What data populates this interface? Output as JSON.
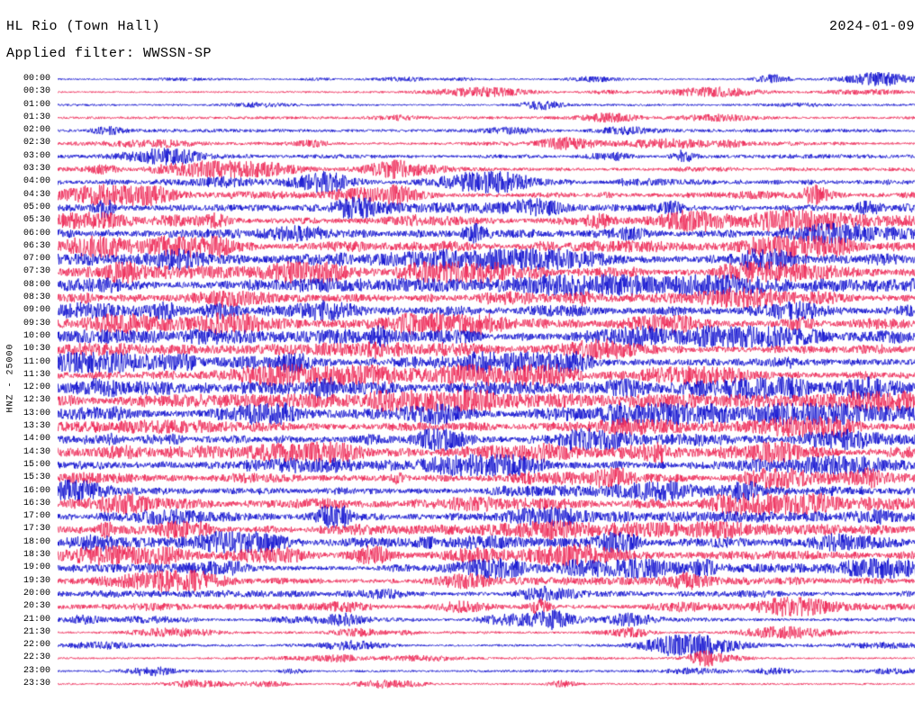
{
  "header": {
    "station_title": "HL Rio (Town Hall)",
    "date": "2024-01-09",
    "filter_label": "Applied filter: WWSSN-SP"
  },
  "axis": {
    "y_label": "HNZ - 25000"
  },
  "chart_data": {
    "type": "line",
    "title": "HL Rio (Town Hall)",
    "subtitle": "Applied filter: WWSSN-SP",
    "date": "2024-01-09",
    "channel": "HNZ",
    "scale": 25000,
    "minutes_per_row": 30,
    "rows_count": 48,
    "legend_position": "none",
    "grid": false,
    "trace_colors": {
      "blue": "#0000cd",
      "red": "#ed1a4c"
    },
    "rows": [
      {
        "label": "00:00",
        "color": "blue",
        "activity": 0.22
      },
      {
        "label": "00:30",
        "color": "red",
        "activity": 0.25
      },
      {
        "label": "01:00",
        "color": "blue",
        "activity": 0.28
      },
      {
        "label": "01:30",
        "color": "red",
        "activity": 0.33
      },
      {
        "label": "02:00",
        "color": "blue",
        "activity": 0.38
      },
      {
        "label": "02:30",
        "color": "red",
        "activity": 0.42
      },
      {
        "label": "03:00",
        "color": "blue",
        "activity": 0.45
      },
      {
        "label": "03:30",
        "color": "red",
        "activity": 0.55
      },
      {
        "label": "04:00",
        "color": "blue",
        "activity": 0.65
      },
      {
        "label": "04:30",
        "color": "red",
        "activity": 0.68
      },
      {
        "label": "05:00",
        "color": "blue",
        "activity": 0.78
      },
      {
        "label": "05:30",
        "color": "red",
        "activity": 0.82
      },
      {
        "label": "06:00",
        "color": "blue",
        "activity": 0.88
      },
      {
        "label": "06:30",
        "color": "red",
        "activity": 0.85
      },
      {
        "label": "07:00",
        "color": "blue",
        "activity": 0.9
      },
      {
        "label": "07:30",
        "color": "red",
        "activity": 0.9
      },
      {
        "label": "08:00",
        "color": "blue",
        "activity": 0.92
      },
      {
        "label": "08:30",
        "color": "red",
        "activity": 0.88
      },
      {
        "label": "09:00",
        "color": "blue",
        "activity": 0.9
      },
      {
        "label": "09:30",
        "color": "red",
        "activity": 0.9
      },
      {
        "label": "10:00",
        "color": "blue",
        "activity": 0.92
      },
      {
        "label": "10:30",
        "color": "red",
        "activity": 0.9
      },
      {
        "label": "11:00",
        "color": "blue",
        "activity": 0.95
      },
      {
        "label": "11:30",
        "color": "red",
        "activity": 0.9
      },
      {
        "label": "12:00",
        "color": "blue",
        "activity": 0.9
      },
      {
        "label": "12:30",
        "color": "red",
        "activity": 0.92
      },
      {
        "label": "13:00",
        "color": "blue",
        "activity": 0.95
      },
      {
        "label": "13:30",
        "color": "red",
        "activity": 0.9
      },
      {
        "label": "14:00",
        "color": "blue",
        "activity": 0.9
      },
      {
        "label": "14:30",
        "color": "red",
        "activity": 0.92
      },
      {
        "label": "15:00",
        "color": "blue",
        "activity": 0.9
      },
      {
        "label": "15:30",
        "color": "red",
        "activity": 0.88
      },
      {
        "label": "16:00",
        "color": "blue",
        "activity": 0.85
      },
      {
        "label": "16:30",
        "color": "red",
        "activity": 0.85
      },
      {
        "label": "17:00",
        "color": "blue",
        "activity": 0.82
      },
      {
        "label": "17:30",
        "color": "red",
        "activity": 0.8
      },
      {
        "label": "18:00",
        "color": "blue",
        "activity": 0.75
      },
      {
        "label": "18:30",
        "color": "red",
        "activity": 0.72
      },
      {
        "label": "19:00",
        "color": "blue",
        "activity": 0.7
      },
      {
        "label": "19:30",
        "color": "red",
        "activity": 0.65
      },
      {
        "label": "20:00",
        "color": "blue",
        "activity": 0.62
      },
      {
        "label": "20:30",
        "color": "red",
        "activity": 0.6
      },
      {
        "label": "21:00",
        "color": "blue",
        "activity": 0.42
      },
      {
        "label": "21:30",
        "color": "red",
        "activity": 0.3
      },
      {
        "label": "22:00",
        "color": "blue",
        "activity": 0.35
      },
      {
        "label": "22:30",
        "color": "red",
        "activity": 0.3
      },
      {
        "label": "23:00",
        "color": "blue",
        "activity": 0.3
      },
      {
        "label": "23:30",
        "color": "red",
        "activity": 0.24
      }
    ]
  }
}
